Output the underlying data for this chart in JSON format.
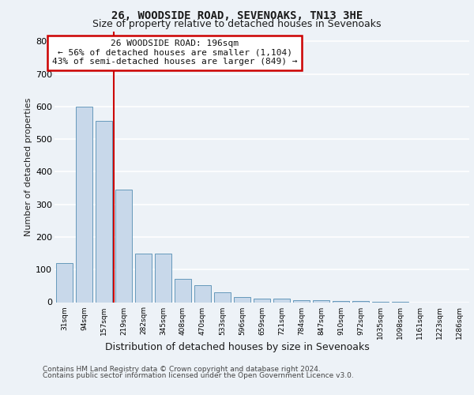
{
  "title_line1": "26, WOODSIDE ROAD, SEVENOAKS, TN13 3HE",
  "title_line2": "Size of property relative to detached houses in Sevenoaks",
  "xlabel": "Distribution of detached houses by size in Sevenoaks",
  "ylabel": "Number of detached properties",
  "categories": [
    "31sqm",
    "94sqm",
    "157sqm",
    "219sqm",
    "282sqm",
    "345sqm",
    "408sqm",
    "470sqm",
    "533sqm",
    "596sqm",
    "659sqm",
    "721sqm",
    "784sqm",
    "847sqm",
    "910sqm",
    "972sqm",
    "1035sqm",
    "1098sqm",
    "1161sqm",
    "1223sqm",
    "1286sqm"
  ],
  "values": [
    120,
    600,
    555,
    345,
    148,
    148,
    72,
    52,
    30,
    15,
    12,
    10,
    7,
    5,
    4,
    3,
    2,
    1,
    0,
    0,
    0
  ],
  "bar_color": "#c8d8ea",
  "bar_edge_color": "#6699bb",
  "bar_edge_width": 0.7,
  "red_line_x": 2.5,
  "annotation_title": "26 WOODSIDE ROAD: 196sqm",
  "annotation_line2": "← 56% of detached houses are smaller (1,104)",
  "annotation_line3": "43% of semi-detached houses are larger (849) →",
  "ylim": [
    0,
    830
  ],
  "yticks": [
    0,
    100,
    200,
    300,
    400,
    500,
    600,
    700,
    800
  ],
  "footer_line1": "Contains HM Land Registry data © Crown copyright and database right 2024.",
  "footer_line2": "Contains public sector information licensed under the Open Government Licence v3.0.",
  "bg_color": "#edf2f7",
  "grid_color": "#ffffff",
  "annotation_box_edge_color": "#cc0000",
  "red_line_color": "#cc0000"
}
